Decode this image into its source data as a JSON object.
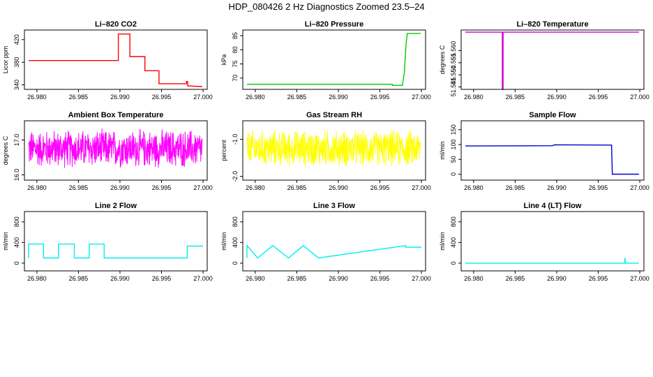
{
  "page": {
    "title": "HDP_080426  2 Hz Diagnostics Zoomed 23.5–24"
  },
  "chart_data": [
    {
      "id": "li820-co2",
      "type": "line",
      "title": "Li–820 CO2",
      "ylabel": "Licor ppm",
      "xlabel": "",
      "xlim": [
        26.9785,
        27.0005
      ],
      "ylim": [
        332,
        437
      ],
      "xticks": [
        "26.980",
        "26.985",
        "26.990",
        "26.995",
        "27.000"
      ],
      "xtick_values": [
        26.98,
        26.985,
        26.99,
        26.995,
        27.0
      ],
      "yticks": [
        "340",
        "380",
        "420"
      ],
      "ytick_values": [
        340,
        380,
        420
      ],
      "color": "#ff0000",
      "noise": 0.8,
      "series": [
        {
          "x": [
            26.979,
            26.9898,
            26.9898,
            26.9912,
            26.9912,
            26.993,
            26.993,
            26.9947,
            26.9947,
            26.998,
            26.998,
            26.99815,
            26.99815,
            26.9999
          ],
          "y": [
            383,
            383,
            430,
            430,
            390,
            390,
            365,
            365,
            342,
            342,
            346,
            346,
            338,
            337
          ]
        }
      ]
    },
    {
      "id": "li820-pressure",
      "type": "line",
      "title": "Li–820 Pressure",
      "ylabel": "kPa",
      "xlabel": "",
      "xlim": [
        26.9785,
        27.0005
      ],
      "ylim": [
        66,
        87
      ],
      "xticks": [
        "26.980",
        "26.985",
        "26.990",
        "26.995",
        "27.000"
      ],
      "xtick_values": [
        26.98,
        26.985,
        26.99,
        26.995,
        27.0
      ],
      "yticks": [
        "70",
        "75",
        "80",
        "85"
      ],
      "ytick_values": [
        70,
        75,
        80,
        85
      ],
      "color": "#00cc00",
      "noise": 0.05,
      "series": [
        {
          "x": [
            26.979,
            26.9965,
            26.9965,
            26.9977,
            26.99795,
            26.99815,
            26.9983,
            26.9999
          ],
          "y": [
            67.8,
            67.8,
            67.4,
            67.4,
            72,
            82,
            85.8,
            85.8
          ]
        }
      ]
    },
    {
      "id": "li820-temperature",
      "type": "line",
      "title": "Li–820 Temperature",
      "ylabel": "degrees C",
      "xlabel": "",
      "xlim": [
        26.9785,
        27.0005
      ],
      "ylim": [
        51.544,
        51.5685
      ],
      "xticks": [
        "26.980",
        "26.985",
        "26.990",
        "26.995",
        "27.000"
      ],
      "xtick_values": [
        26.98,
        26.985,
        26.99,
        26.995,
        27.0
      ],
      "yticks": [
        "51.545",
        "51.550",
        "51.555",
        "51.560"
      ],
      "ytick_values": [
        51.545,
        51.55,
        51.555,
        51.56
      ],
      "color": "#cc00cc",
      "noise": 0.0,
      "series": [
        {
          "x": [
            26.979,
            26.98345,
            26.98345,
            26.98355,
            26.98355,
            26.9999
          ],
          "y": [
            51.5676,
            51.5676,
            51.544,
            51.544,
            51.5676,
            51.5676
          ]
        }
      ]
    },
    {
      "id": "ambient-box-temperature",
      "type": "line",
      "title": "Ambient Box Temperature",
      "ylabel": "degrees C",
      "xlabel": "",
      "xlim": [
        26.9785,
        27.0005
      ],
      "ylim": [
        15.85,
        17.55
      ],
      "xticks": [
        "26.980",
        "26.985",
        "26.990",
        "26.995",
        "27.000"
      ],
      "xtick_values": [
        26.98,
        26.985,
        26.99,
        26.995,
        27.0
      ],
      "yticks": [
        "16.0",
        "17.0"
      ],
      "ytick_values": [
        16.0,
        17.0
      ],
      "color": "#ff00ff",
      "noise": 0.55,
      "dense": true,
      "series": [
        {
          "x": [
            26.979,
            26.9999
          ],
          "y": [
            16.75,
            16.75
          ]
        }
      ]
    },
    {
      "id": "gas-stream-rh",
      "type": "line",
      "title": "Gas Stream RH",
      "ylabel": "percent",
      "xlabel": "",
      "xlim": [
        26.9785,
        27.0005
      ],
      "ylim": [
        -2.1,
        -0.5
      ],
      "xticks": [
        "26.980",
        "26.985",
        "26.990",
        "26.995",
        "27.000"
      ],
      "xtick_values": [
        26.98,
        26.985,
        26.99,
        26.995,
        27.0
      ],
      "yticks": [
        "-2.0",
        "-1.0"
      ],
      "ytick_values": [
        -2.0,
        -1.0
      ],
      "color": "#ffff00",
      "noise": 0.5,
      "dense": true,
      "series": [
        {
          "x": [
            26.979,
            26.9999
          ],
          "y": [
            -1.25,
            -1.25
          ]
        }
      ]
    },
    {
      "id": "sample-flow",
      "type": "line",
      "title": "Sample Flow",
      "ylabel": "ml/min",
      "xlabel": "",
      "xlim": [
        26.9785,
        27.0005
      ],
      "ylim": [
        -20,
        180
      ],
      "xticks": [
        "26.980",
        "26.985",
        "26.990",
        "26.995",
        "27.000"
      ],
      "xtick_values": [
        26.98,
        26.985,
        26.99,
        26.995,
        27.0
      ],
      "yticks": [
        "0",
        "50",
        "100",
        "150"
      ],
      "ytick_values": [
        0,
        50,
        100,
        150
      ],
      "color": "#0000cc",
      "noise": 1.5,
      "series": [
        {
          "x": [
            26.979,
            26.9895,
            26.9897,
            26.9966,
            26.9967,
            26.9999
          ],
          "y": [
            95,
            96,
            99,
            98,
            0,
            0
          ]
        }
      ]
    },
    {
      "id": "line-2-flow",
      "type": "line",
      "title": "Line 2 Flow",
      "ylabel": "ml/min",
      "xlabel": "",
      "xlim": [
        26.9785,
        27.0005
      ],
      "ylim": [
        -150,
        1000
      ],
      "xticks": [
        "26.980",
        "26.985",
        "26.990",
        "26.995",
        "27.000"
      ],
      "xtick_values": [
        26.98,
        26.985,
        26.99,
        26.995,
        27.0
      ],
      "yticks": [
        "0",
        "400",
        "800"
      ],
      "ytick_values": [
        0,
        400,
        800
      ],
      "color": "#00eeee",
      "noise": 0,
      "series": [
        {
          "x": [
            26.979,
            26.979,
            26.9808,
            26.9808,
            26.9826,
            26.9826,
            26.9845,
            26.9845,
            26.9863,
            26.9863,
            26.9881,
            26.9881,
            26.9981,
            26.9981,
            27.0
          ],
          "y": [
            100,
            370,
            370,
            100,
            100,
            370,
            370,
            100,
            100,
            370,
            370,
            100,
            100,
            330,
            330
          ]
        }
      ]
    },
    {
      "id": "line-3-flow",
      "type": "line",
      "title": "Line 3 Flow",
      "ylabel": "ml/min",
      "xlabel": "",
      "xlim": [
        26.9785,
        27.0005
      ],
      "ylim": [
        -150,
        1000
      ],
      "xticks": [
        "26.980",
        "26.985",
        "26.990",
        "26.995",
        "27.000"
      ],
      "xtick_values": [
        26.98,
        26.985,
        26.99,
        26.995,
        27.0
      ],
      "yticks": [
        "0",
        "400",
        "800"
      ],
      "ytick_values": [
        0,
        400,
        800
      ],
      "color": "#00eeee",
      "noise": 0,
      "series": [
        {
          "x": [
            26.979,
            26.979,
            26.9803,
            26.9803,
            26.9821,
            26.9821,
            26.984,
            26.984,
            26.9858,
            26.9858,
            26.9876,
            26.9876,
            26.9981,
            26.9981,
            27.0
          ],
          "y": [
            100,
            340,
            100,
            100,
            340,
            340,
            100,
            100,
            340,
            340,
            100,
            100,
            340,
            310,
            310
          ]
        }
      ]
    },
    {
      "id": "line-4-lt-flow",
      "type": "line",
      "title": "Line 4 (LT) Flow",
      "ylabel": "ml/min",
      "xlabel": "",
      "xlim": [
        26.9785,
        27.0005
      ],
      "ylim": [
        -150,
        1000
      ],
      "xticks": [
        "26.980",
        "26.985",
        "26.990",
        "26.995",
        "27.000"
      ],
      "xtick_values": [
        26.98,
        26.985,
        26.99,
        26.995,
        27.0
      ],
      "yticks": [
        "0",
        "400",
        "800"
      ],
      "ytick_values": [
        0,
        400,
        800
      ],
      "color": "#00eeee",
      "noise": 0,
      "series": [
        {
          "x": [
            26.979,
            26.9982,
            26.9982,
            26.99825,
            26.99825,
            26.9999
          ],
          "y": [
            0,
            0,
            90,
            90,
            0,
            0
          ]
        }
      ]
    }
  ]
}
